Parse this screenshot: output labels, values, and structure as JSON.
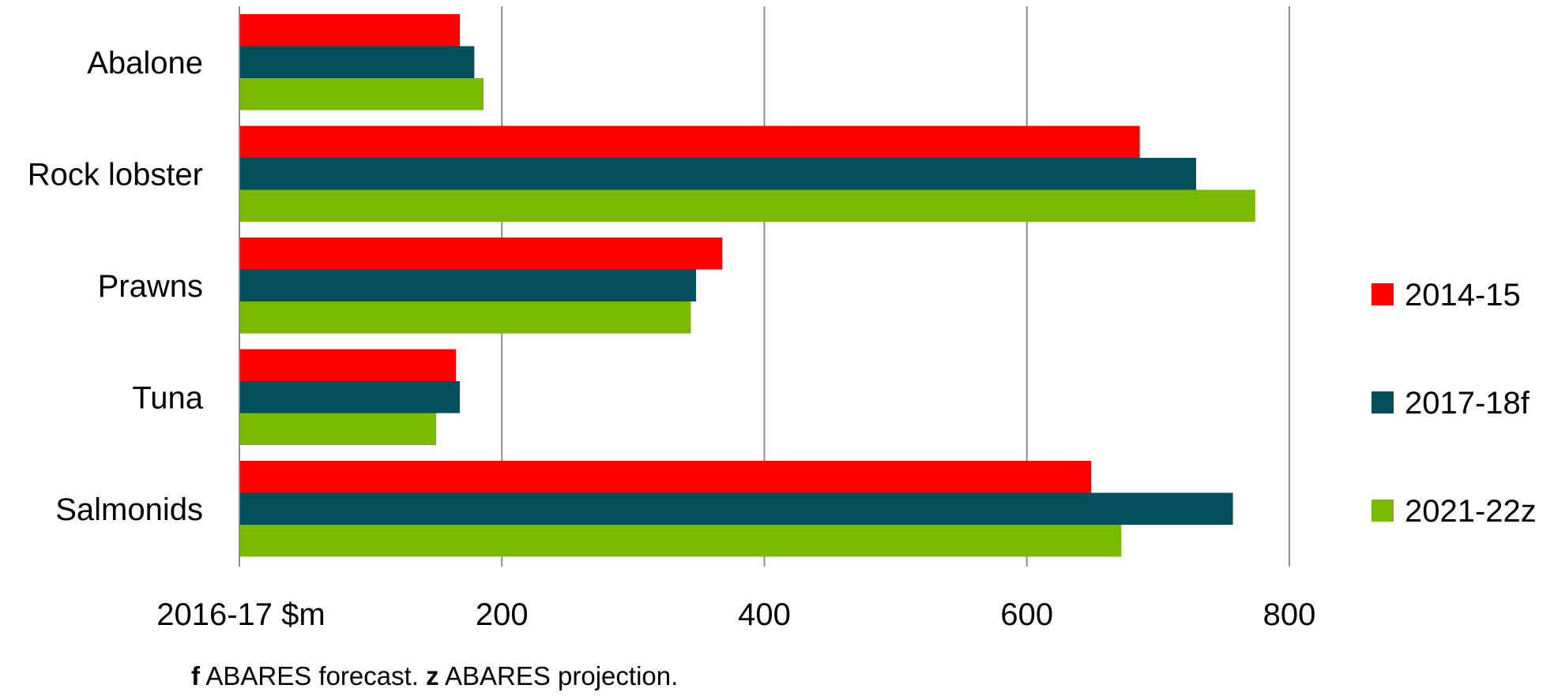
{
  "chart_data": {
    "type": "bar",
    "orientation": "horizontal",
    "categories": [
      "Abalone",
      "Rock lobster",
      "Prawns",
      "Tuna",
      "Salmonids"
    ],
    "series": [
      {
        "name": "2014-15",
        "color": "#ff0000",
        "values": [
          168,
          686,
          368,
          165,
          649
        ]
      },
      {
        "name": "2017-18f",
        "color": "#034f5b",
        "values": [
          179,
          729,
          348,
          168,
          757
        ]
      },
      {
        "name": "2021-22z",
        "color": "#79b900",
        "values": [
          186,
          774,
          344,
          150,
          672
        ]
      }
    ],
    "xlabel": "2016-17 $m",
    "xlim": [
      0,
      800
    ],
    "xticks": [
      200,
      400,
      600,
      800
    ],
    "xtick_labels": [
      "200",
      "400",
      "600",
      "800"
    ],
    "grid": true,
    "legend_position": "right"
  },
  "footnote": {
    "f_marker": "f",
    "f_text": " ABARES forecast. ",
    "z_marker": "z",
    "z_text": " ABARES projection."
  }
}
